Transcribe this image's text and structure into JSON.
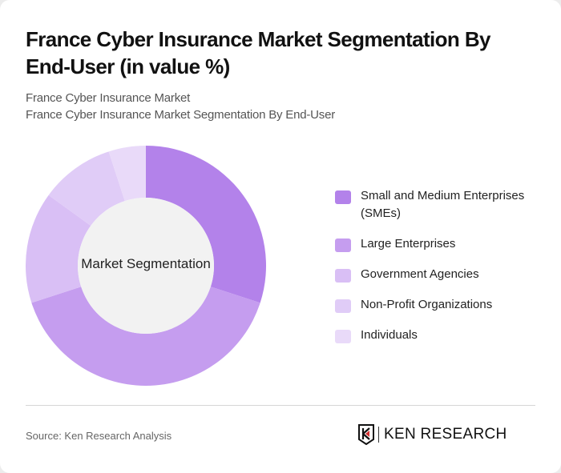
{
  "header": {
    "title": "France Cyber Insurance Market Segmentation By End-User (in value %)",
    "subtitle_1": "France Cyber Insurance Market",
    "subtitle_2": "France Cyber Insurance Market Segmentation By End-User"
  },
  "chart_data": {
    "type": "pie",
    "variant": "donut",
    "title": "France Cyber Insurance Market Segmentation By End-User (in value %)",
    "center_label": "Market Segmentation",
    "categories": [
      "Small and Medium Enterprises (SMEs)",
      "Large Enterprises",
      "Government Agencies",
      "Non-Profit Organizations",
      "Individuals"
    ],
    "values": [
      30,
      40,
      15,
      10,
      5
    ],
    "colors": [
      "#b382ea",
      "#c59def",
      "#d9bff5",
      "#e0ccf7",
      "#e9daf9"
    ],
    "legend_position": "right"
  },
  "legend": {
    "items": [
      {
        "label": "Small and Medium Enterprises (SMEs)",
        "color": "#b382ea"
      },
      {
        "label": "Large Enterprises",
        "color": "#c59def"
      },
      {
        "label": "Government Agencies",
        "color": "#d9bff5"
      },
      {
        "label": "Non-Profit Organizations",
        "color": "#e0ccf7"
      },
      {
        "label": "Individuals",
        "color": "#e9daf9"
      }
    ]
  },
  "footer": {
    "source": "Source: Ken Research Analysis",
    "logo_text": "KEN RESEARCH"
  }
}
